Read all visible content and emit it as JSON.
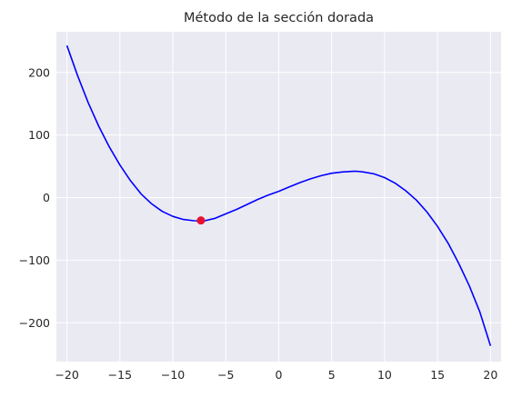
{
  "chart_data": {
    "type": "line",
    "title": "Método de la sección dorada",
    "xlabel": "",
    "ylabel": "",
    "xlim": [
      -21,
      21
    ],
    "ylim": [
      -262,
      265
    ],
    "xticks": [
      -20,
      -15,
      -10,
      -5,
      0,
      5,
      10,
      15,
      20
    ],
    "xtick_labels": [
      "−20",
      "−15",
      "−10",
      "−5",
      "0",
      "5",
      "10",
      "15",
      "20"
    ],
    "yticks": [
      -200,
      -100,
      0,
      100,
      200
    ],
    "ytick_labels": [
      "−200",
      "−100",
      "0",
      "100",
      "200"
    ],
    "grid": true,
    "series": [
      {
        "color": "#0000ff",
        "x": [
          -20,
          -19,
          -18,
          -17,
          -16,
          -15,
          -14,
          -13,
          -12,
          -11,
          -10,
          -9,
          -8,
          -7.35,
          -7,
          -6,
          -5,
          -4,
          -3,
          -2,
          -1,
          0,
          1,
          2,
          3,
          4,
          5,
          6,
          7,
          7.35,
          8,
          9,
          10,
          11,
          12,
          13,
          14,
          15,
          16,
          17,
          18,
          19,
          20
        ],
        "y": [
          243,
          195,
          152,
          114,
          81,
          52,
          27,
          6,
          -10,
          -22,
          -30,
          -35,
          -37,
          -37.2,
          -37,
          -33,
          -26,
          -19,
          -11,
          -3,
          4,
          10,
          17,
          24,
          30,
          35,
          39,
          41,
          42,
          42.2,
          41,
          38,
          32,
          23,
          11,
          -4,
          -23,
          -46,
          -73,
          -105,
          -141,
          -183,
          -237
        ]
      }
    ],
    "points": [
      {
        "x": -7.35,
        "y": -36.5,
        "color": "#e8112d"
      }
    ],
    "colors": {
      "plot_background": "#eaeaf2",
      "grid": "#ffffff",
      "text": "#262626"
    }
  }
}
